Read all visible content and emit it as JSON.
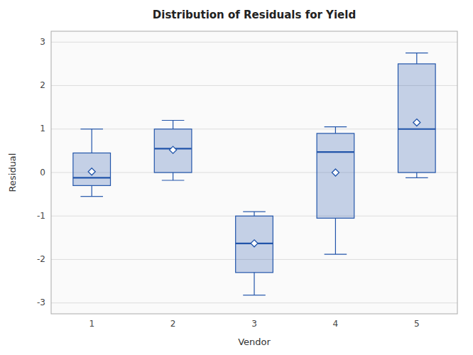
{
  "chart_data": {
    "type": "box",
    "title": "Distribution of Residuals for Yield",
    "x_label": "Vendor",
    "y_label": "Residual",
    "categories": [
      "1",
      "2",
      "3",
      "4",
      "5"
    ],
    "q1": [
      -0.3,
      0.0,
      -2.3,
      -1.05,
      0.0
    ],
    "median": [
      -0.12,
      0.55,
      -1.63,
      0.47,
      1.0
    ],
    "q3": [
      0.45,
      1.0,
      -1.0,
      0.9,
      2.5
    ],
    "mean": [
      0.02,
      0.52,
      -1.63,
      0.0,
      1.15
    ],
    "whisker_low": [
      -0.55,
      -0.18,
      -2.82,
      -1.88,
      -0.12
    ],
    "whisker_high": [
      1.0,
      1.2,
      -0.9,
      1.05,
      2.75
    ],
    "color": "#2255aa",
    "ylim": [
      -3.25,
      3.25
    ],
    "yticks": [
      -3,
      -2,
      -1,
      0,
      1,
      2,
      3
    ],
    "grid": true
  }
}
